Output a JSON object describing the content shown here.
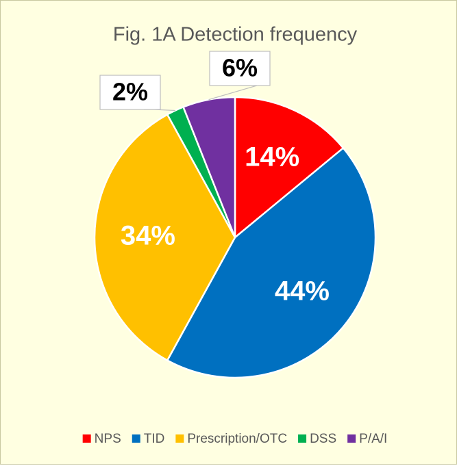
{
  "chart_data": {
    "type": "pie",
    "title": "Fig. 1A Detection frequency",
    "categories": [
      "NPS",
      "TID",
      "Prescription/OTC",
      "DSS",
      "P/A/I"
    ],
    "values": [
      14,
      44,
      34,
      2,
      6
    ],
    "value_labels": [
      "14%",
      "44%",
      "34%",
      "2%",
      "6%"
    ],
    "colors": [
      "#ff0000",
      "#0070c0",
      "#ffc000",
      "#00b050",
      "#7030a0"
    ],
    "legend": "bottom"
  }
}
